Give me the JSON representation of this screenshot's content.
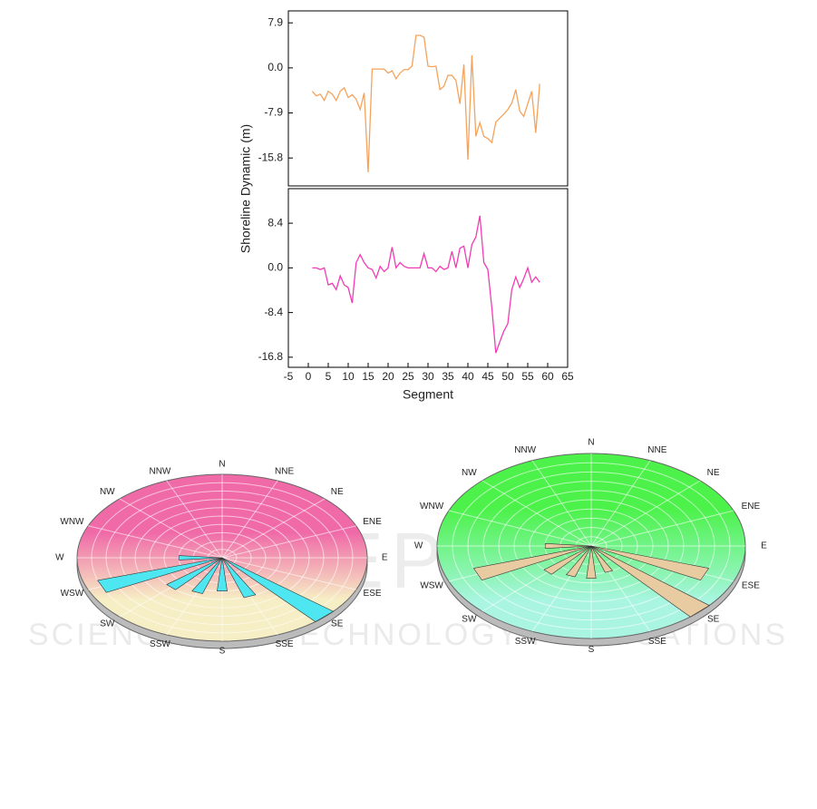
{
  "chart_data": [
    {
      "type": "line",
      "ylabel": "Shoreline Dynamic (m)",
      "color": "#f5a35c",
      "xlim": [
        -5,
        65
      ],
      "ylim": [
        -20.7,
        10
      ],
      "yticks": [
        7.9,
        {
          "value": 0,
          "label": "0.0"
        },
        -7.9,
        -15.8
      ],
      "x": [
        1,
        2,
        3,
        4,
        5,
        6,
        7,
        8,
        9,
        10,
        11,
        12,
        13,
        14,
        15,
        16,
        17,
        18,
        19,
        20,
        21,
        22,
        23,
        24,
        25,
        26,
        27,
        28,
        29,
        30,
        31,
        32,
        33,
        34,
        35,
        36,
        37,
        38,
        39,
        40,
        41,
        42,
        43,
        44,
        45,
        46,
        47,
        48,
        49,
        50,
        51,
        52,
        53,
        54,
        55,
        56,
        57,
        58
      ],
      "values": [
        -4.1,
        -4.9,
        -4.6,
        -5.7,
        -4.1,
        -4.6,
        -5.7,
        -4.1,
        -3.5,
        -5.2,
        -4.7,
        -5.5,
        -7.3,
        -4.4,
        -18.3,
        -0.2,
        -0.2,
        -0.2,
        -0.2,
        -0.9,
        -0.5,
        -1.9,
        -0.9,
        -0.3,
        -0.3,
        0.3,
        5.7,
        5.7,
        5.4,
        0.3,
        0.2,
        0.3,
        -3.8,
        -3.2,
        -1.3,
        -1.3,
        -2.2,
        -6.3,
        0.6,
        -16.1,
        2.2,
        -12,
        -9.6,
        -12,
        -12.4,
        -13.1,
        -9.5,
        -8.8,
        -8.1,
        -7.3,
        -6.2,
        -3.8,
        -7.6,
        -8.5,
        -6.3,
        -4.1,
        -11.4,
        -2.8
      ]
    },
    {
      "type": "line",
      "xlabel": "Segment",
      "color": "#f03cb4",
      "xlim": [
        -5,
        65
      ],
      "xticks": [
        -5,
        0,
        5,
        10,
        15,
        20,
        25,
        30,
        35,
        40,
        45,
        50,
        55,
        60,
        65
      ],
      "ylim": [
        -18.7,
        14.9
      ],
      "yticks": [
        8.4,
        {
          "value": 0,
          "label": "0.0"
        },
        -8.4,
        -16.8
      ],
      "x": [
        1,
        2,
        3,
        4,
        5,
        6,
        7,
        8,
        9,
        10,
        11,
        12,
        13,
        14,
        15,
        16,
        17,
        18,
        19,
        20,
        21,
        22,
        23,
        24,
        25,
        26,
        27,
        28,
        29,
        30,
        31,
        32,
        33,
        34,
        35,
        36,
        37,
        38,
        39,
        40,
        41,
        42,
        43,
        44,
        45,
        46,
        47,
        48,
        49,
        50,
        51,
        52,
        53,
        54,
        55,
        56,
        57,
        58
      ],
      "values": [
        0,
        0,
        -0.3,
        0,
        -3.2,
        -2.9,
        -4.1,
        -1.5,
        -3.2,
        -3.7,
        -6.6,
        1,
        2.5,
        1,
        0,
        -0.3,
        -1.9,
        0.3,
        -0.7,
        0,
        3.9,
        0,
        1,
        0.3,
        0,
        0,
        0,
        0,
        2.7,
        0,
        0,
        -0.7,
        0.3,
        -0.3,
        0,
        3.1,
        0,
        3.7,
        4.1,
        0,
        4.4,
        5.8,
        9.8,
        1,
        -0.3,
        -7.5,
        -16,
        -13.9,
        -11.9,
        -10.5,
        -4.1,
        -1.7,
        -3.7,
        -2,
        0,
        -2.7,
        -1.7,
        -2.7
      ]
    },
    {
      "type": "polar_bar",
      "color": "#4ee6f0",
      "top_color": "#f06aa8",
      "bottom_color": "#f6eec4",
      "categories": [
        "N",
        "NNE",
        "NE",
        "ENE",
        "E",
        "ESE",
        "SE",
        "SSE",
        "S",
        "SSW",
        "SW",
        "WSW",
        "W",
        "WNW",
        "NW",
        "NNW"
      ],
      "values": [
        0,
        0,
        0,
        0,
        0,
        0,
        10,
        5,
        4,
        4.5,
        5,
        9,
        3,
        0,
        0,
        0
      ],
      "rlim": [
        0,
        10
      ]
    },
    {
      "type": "polar_bar",
      "color": "#e8cba0",
      "top_color": "#4cf24a",
      "bottom_color": "#a9f5e2",
      "categories": [
        "N",
        "NNE",
        "NE",
        "ENE",
        "E",
        "ESE",
        "SE",
        "SSE",
        "S",
        "SSW",
        "SW",
        "WSW",
        "W",
        "WNW",
        "NW",
        "NNW"
      ],
      "values": [
        0,
        0,
        0,
        0,
        0,
        8,
        10,
        3,
        3.5,
        3.5,
        4,
        8,
        3,
        0,
        0,
        0
      ],
      "rlim": [
        0,
        10
      ]
    }
  ],
  "watermark": [
    "SCITEPRESS",
    "SCIENCE AND TECHNOLOGY PUBLICATIONS"
  ]
}
